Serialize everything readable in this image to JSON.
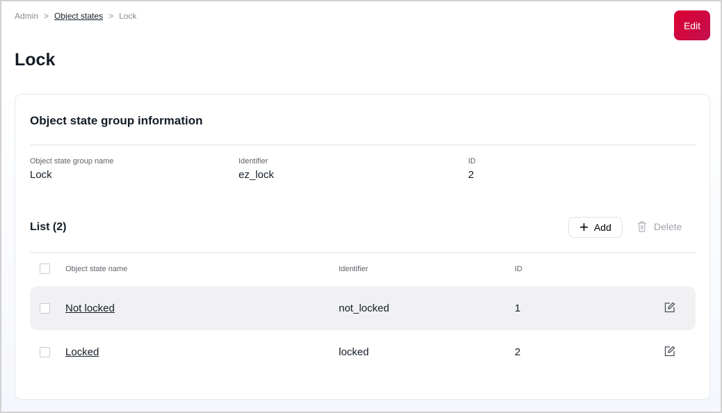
{
  "breadcrumb": [
    "Admin",
    "Object states",
    "Lock"
  ],
  "edit_label": "Edit",
  "title": "Lock",
  "info": {
    "heading": "Object state group information",
    "fields": [
      {
        "label": "Object state group name",
        "value": "Lock"
      },
      {
        "label": "Identifier",
        "value": "ez_lock"
      },
      {
        "label": "ID",
        "value": "2"
      }
    ]
  },
  "list": {
    "title": "List (2)",
    "add_label": "Add",
    "delete_label": "Delete",
    "columns": [
      "Object state name",
      "Identifier",
      "ID"
    ],
    "rows": [
      {
        "name": "Not locked",
        "identifier": "not_locked",
        "id": "1"
      },
      {
        "name": "Locked",
        "identifier": "locked",
        "id": "2"
      }
    ]
  },
  "colors": {
    "accent": "#db0032"
  }
}
